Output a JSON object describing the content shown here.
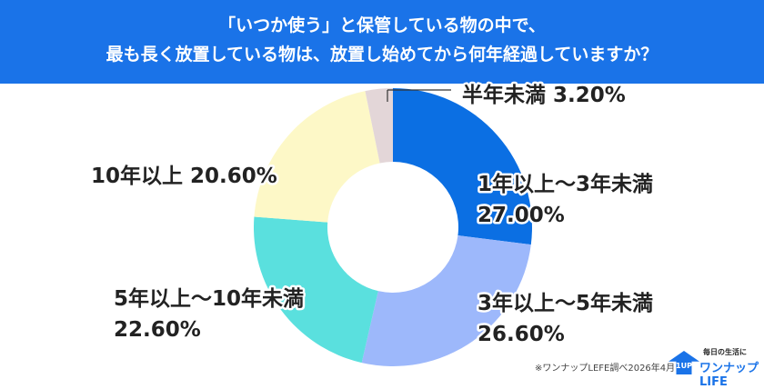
{
  "header": {
    "line1": "「いつか使う」と保管している物の中で、",
    "line2": "最も長く放置している物は、放置し始めてから何年経過していますか？"
  },
  "chart_data": {
    "type": "pie",
    "donut": true,
    "title": "「いつか使う」と保管している物の中で、最も長く放置している物は、放置し始めてから何年経過していますか？",
    "slices": [
      {
        "label": "1年以上～3年未満",
        "value": 27.0,
        "display": "27.00%",
        "color": "#0b6fe3"
      },
      {
        "label": "3年以上～5年未満",
        "value": 26.6,
        "display": "26.60%",
        "color": "#9db8fb"
      },
      {
        "label": "5年以上～10年未満",
        "value": 22.6,
        "display": "22.60%",
        "color": "#5ae0de"
      },
      {
        "label": "10年以上",
        "value": 20.6,
        "display": "20.60%",
        "color": "#fdf8c7"
      },
      {
        "label": "半年未満",
        "value": 3.2,
        "display": "3.20%",
        "color": "#e3d6d8"
      }
    ]
  },
  "footer": {
    "source": "※ワンナップLEFE調べ2026年4月",
    "logo_tagline": "毎日の生活に",
    "logo_name": "ワンナップ LIFE",
    "logo_up": "1UP"
  }
}
